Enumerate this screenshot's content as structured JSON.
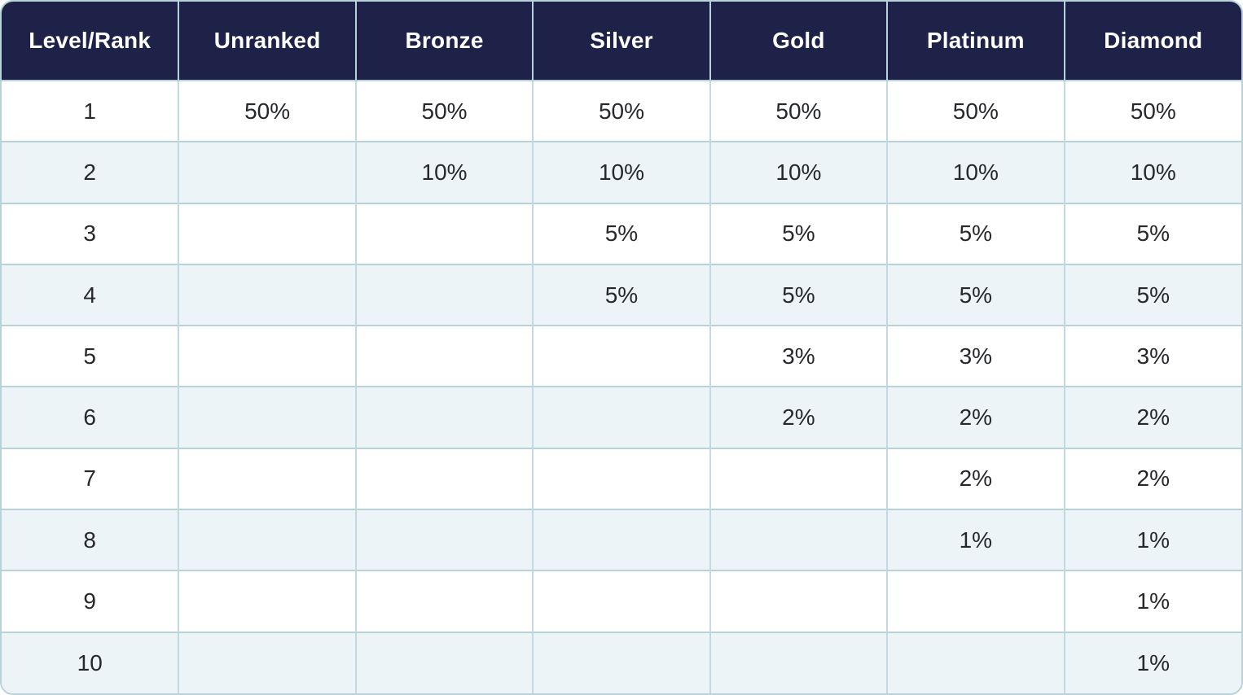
{
  "chart_data": {
    "type": "table",
    "columns": [
      "Level/Rank",
      "Unranked",
      "Bronze",
      "Silver",
      "Gold",
      "Platinum",
      "Diamond"
    ],
    "rows": [
      [
        "1",
        "50%",
        "50%",
        "50%",
        "50%",
        "50%",
        "50%"
      ],
      [
        "2",
        "",
        "10%",
        "10%",
        "10%",
        "10%",
        "10%"
      ],
      [
        "3",
        "",
        "",
        "5%",
        "5%",
        "5%",
        "5%"
      ],
      [
        "4",
        "",
        "",
        "5%",
        "5%",
        "5%",
        "5%"
      ],
      [
        "5",
        "",
        "",
        "",
        "3%",
        "3%",
        "3%"
      ],
      [
        "6",
        "",
        "",
        "",
        "2%",
        "2%",
        "2%"
      ],
      [
        "7",
        "",
        "",
        "",
        "",
        "2%",
        "2%"
      ],
      [
        "8",
        "",
        "",
        "",
        "",
        "1%",
        "1%"
      ],
      [
        "9",
        "",
        "",
        "",
        "",
        "",
        "1%"
      ],
      [
        "10",
        "",
        "",
        "",
        "",
        "",
        "1%"
      ]
    ]
  },
  "colors": {
    "header_bg": "#1e2248",
    "header_text": "#ffffff",
    "row_bg": "#ffffff",
    "row_alt_bg": "#ecf4f7",
    "border": "#b8d2da",
    "body_text": "#26282b"
  }
}
